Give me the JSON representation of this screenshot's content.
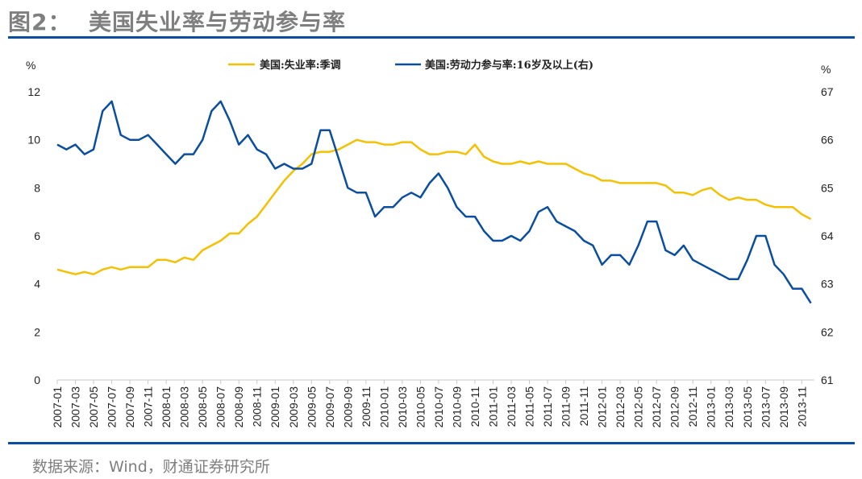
{
  "header": {
    "title": "图2：  美国失业率与劳动参与率"
  },
  "footer": {
    "source": "数据来源：Wind，财通证券研究所"
  },
  "colors": {
    "unemployment": "#f5c000",
    "participation": "#0a4ea0",
    "rule": "#0a4ea0"
  },
  "chart_data": {
    "type": "line",
    "left_axis": {
      "unit": "%",
      "range": [
        0,
        12
      ],
      "ticks": [
        "0",
        "2",
        "4",
        "6",
        "8",
        "10",
        "12"
      ]
    },
    "right_axis": {
      "unit": "%",
      "range": [
        61,
        67
      ],
      "ticks": [
        "61",
        "62",
        "63",
        "64",
        "65",
        "66",
        "67"
      ]
    },
    "x_start": "2007-01",
    "x_tick_labels": [
      "2007-01",
      "2007-03",
      "2007-05",
      "2007-07",
      "2007-09",
      "2007-11",
      "2008-01",
      "2008-03",
      "2008-05",
      "2008-07",
      "2008-09",
      "2008-11",
      "2009-01",
      "2009-03",
      "2009-05",
      "2009-07",
      "2009-09",
      "2009-11",
      "2010-01",
      "2010-03",
      "2010-05",
      "2010-07",
      "2010-09",
      "2010-11",
      "2011-01",
      "2011-03",
      "2011-05",
      "2011-07",
      "2011-09",
      "2011-11",
      "2012-01",
      "2012-03",
      "2012-05",
      "2012-07",
      "2012-09",
      "2012-11",
      "2013-01",
      "2013-03",
      "2013-05",
      "2013-07",
      "2013-09",
      "2013-11"
    ],
    "legend_position": "top",
    "grid": false,
    "series": [
      {
        "name": "美国:失业率:季调",
        "axis": "left",
        "color": "#f5c000",
        "values": [
          4.6,
          4.5,
          4.4,
          4.5,
          4.4,
          4.6,
          4.7,
          4.6,
          4.7,
          4.7,
          4.7,
          5.0,
          5.0,
          4.9,
          5.1,
          5.0,
          5.4,
          5.6,
          5.8,
          6.1,
          6.1,
          6.5,
          6.8,
          7.3,
          7.8,
          8.3,
          8.7,
          9.0,
          9.4,
          9.5,
          9.5,
          9.6,
          9.8,
          10.0,
          9.9,
          9.9,
          9.8,
          9.8,
          9.9,
          9.9,
          9.6,
          9.4,
          9.4,
          9.5,
          9.5,
          9.4,
          9.8,
          9.3,
          9.1,
          9.0,
          9.0,
          9.1,
          9.0,
          9.1,
          9.0,
          9.0,
          9.0,
          8.8,
          8.6,
          8.5,
          8.3,
          8.3,
          8.2,
          8.2,
          8.2,
          8.2,
          8.2,
          8.1,
          7.8,
          7.8,
          7.7,
          7.9,
          8.0,
          7.7,
          7.5,
          7.6,
          7.5,
          7.5,
          7.3,
          7.2,
          7.2,
          7.2,
          6.9,
          6.7
        ]
      },
      {
        "name": "美国:劳动力参与率:16岁及以上(右)",
        "axis": "right",
        "color": "#0a4ea0",
        "values": [
          65.9,
          65.8,
          65.9,
          65.7,
          65.8,
          66.6,
          66.8,
          66.1,
          66.0,
          66.0,
          66.1,
          65.9,
          65.7,
          65.5,
          65.7,
          65.7,
          66.0,
          66.6,
          66.8,
          66.4,
          65.9,
          66.1,
          65.8,
          65.7,
          65.4,
          65.5,
          65.4,
          65.4,
          65.5,
          66.2,
          66.2,
          65.6,
          65.0,
          64.9,
          64.9,
          64.4,
          64.6,
          64.6,
          64.8,
          64.9,
          64.8,
          65.1,
          65.3,
          65.0,
          64.6,
          64.4,
          64.4,
          64.1,
          63.9,
          63.9,
          64.0,
          63.9,
          64.1,
          64.5,
          64.6,
          64.3,
          64.2,
          64.1,
          63.9,
          63.8,
          63.4,
          63.6,
          63.6,
          63.4,
          63.8,
          64.3,
          64.3,
          63.7,
          63.6,
          63.8,
          63.5,
          63.4,
          63.3,
          63.2,
          63.1,
          63.1,
          63.5,
          64.0,
          64.0,
          63.4,
          63.2,
          62.9,
          62.9,
          62.6
        ]
      }
    ]
  }
}
